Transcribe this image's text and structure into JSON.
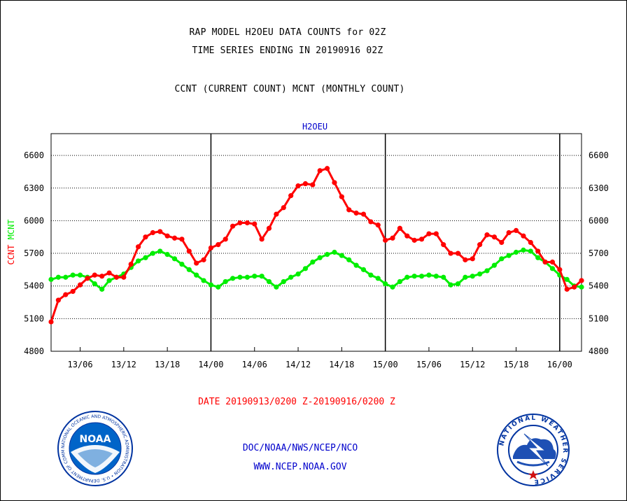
{
  "header": {
    "line1": "RAP MODEL H2OEU DATA COUNTS for 02Z",
    "line2": "TIME SERIES ENDING IN 20190916 02Z",
    "line3": "CCNT (CURRENT COUNT) MCNT (MONTHLY COUNT)"
  },
  "footer": {
    "date_range": "DATE 20190913/0200 Z-20190916/0200 Z",
    "credit_org": "DOC/NOAA/NWS/NCEP/NCO",
    "credit_url": "WWW.NCEP.NOAA.GOV"
  },
  "logos": {
    "noaa_inner_text": "NOAA",
    "noaa_ring_text": "NATIONAL OCEANIC AND ATMOSPHERIC ADMINISTRATION • U.S. DEPARTMENT OF COMMERCE",
    "nws_ring_text": "NATIONAL WEATHER SERVICE"
  },
  "chart_data": {
    "type": "line",
    "title": "H2OEU",
    "ylabel_parts": [
      {
        "text": "CCNT",
        "color": "#ff0000"
      },
      {
        "text": "MCNT",
        "color": "#00ee00"
      }
    ],
    "ylim": [
      4800,
      6800
    ],
    "yticks": [
      4800,
      5100,
      5400,
      5700,
      6000,
      6300,
      6600
    ],
    "ytick_labels": [
      "4800",
      "5100",
      "5400",
      "5700",
      "6000",
      "6300",
      "6600"
    ],
    "grid": true,
    "x_unit": "hours after 20190913/0200 Z",
    "xlim": [
      0,
      73
    ],
    "xticks": [
      4,
      10,
      16,
      22,
      28,
      34,
      40,
      46,
      52,
      58,
      64,
      70
    ],
    "xtick_labels": [
      "13/06",
      "13/12",
      "13/18",
      "14/00",
      "14/06",
      "14/12",
      "14/18",
      "15/00",
      "15/06",
      "15/12",
      "15/18",
      "16/00"
    ],
    "day_dividers": [
      22,
      46,
      70
    ],
    "series": [
      {
        "name": "CCNT",
        "color": "#ff0000",
        "x": [
          0,
          1,
          2,
          3,
          4,
          5,
          6,
          7,
          8,
          9,
          10,
          11,
          12,
          13,
          14,
          15,
          16,
          17,
          18,
          19,
          20,
          21,
          22,
          23,
          24,
          25,
          26,
          27,
          28,
          29,
          30,
          31,
          32,
          33,
          34,
          35,
          36,
          37,
          38,
          39,
          40,
          41,
          42,
          43,
          44,
          45,
          46,
          47,
          48,
          49,
          50,
          51,
          52,
          53,
          54,
          55,
          56,
          57,
          58,
          59,
          60,
          61,
          62,
          63,
          64,
          65,
          66,
          67,
          68,
          69,
          70,
          71,
          72,
          73
        ],
        "values": [
          5070,
          5270,
          5320,
          5350,
          5410,
          5470,
          5500,
          5490,
          5520,
          5480,
          5480,
          5600,
          5760,
          5850,
          5890,
          5900,
          5860,
          5840,
          5830,
          5720,
          5610,
          5640,
          5750,
          5780,
          5830,
          5950,
          5980,
          5980,
          5970,
          5830,
          5930,
          6060,
          6120,
          6230,
          6320,
          6340,
          6330,
          6460,
          6480,
          6350,
          6220,
          6100,
          6070,
          6060,
          5990,
          5960,
          5820,
          5840,
          5930,
          5860,
          5820,
          5830,
          5880,
          5880,
          5780,
          5700,
          5700,
          5640,
          5650,
          5780,
          5870,
          5850,
          5800,
          5890,
          5910,
          5860,
          5800,
          5720,
          5620,
          5620,
          5550,
          5370,
          5390,
          5450
        ]
      },
      {
        "name": "MCNT",
        "color": "#00ee00",
        "x": [
          0,
          1,
          2,
          3,
          4,
          5,
          6,
          7,
          8,
          9,
          10,
          11,
          12,
          13,
          14,
          15,
          16,
          17,
          18,
          19,
          20,
          21,
          22,
          23,
          24,
          25,
          26,
          27,
          28,
          29,
          30,
          31,
          32,
          33,
          34,
          35,
          36,
          37,
          38,
          39,
          40,
          41,
          42,
          43,
          44,
          45,
          46,
          47,
          48,
          49,
          50,
          51,
          52,
          53,
          54,
          55,
          56,
          57,
          58,
          59,
          60,
          61,
          62,
          63,
          64,
          65,
          66,
          67,
          68,
          69,
          70,
          71,
          72,
          73
        ],
        "values": [
          5460,
          5480,
          5480,
          5500,
          5500,
          5480,
          5420,
          5370,
          5450,
          5480,
          5510,
          5570,
          5630,
          5660,
          5700,
          5720,
          5690,
          5650,
          5600,
          5550,
          5500,
          5450,
          5410,
          5390,
          5440,
          5470,
          5480,
          5480,
          5490,
          5490,
          5440,
          5390,
          5440,
          5480,
          5510,
          5560,
          5620,
          5660,
          5690,
          5710,
          5680,
          5640,
          5590,
          5550,
          5500,
          5470,
          5420,
          5390,
          5440,
          5480,
          5490,
          5490,
          5500,
          5490,
          5480,
          5410,
          5420,
          5480,
          5490,
          5510,
          5540,
          5590,
          5650,
          5680,
          5710,
          5730,
          5720,
          5660,
          5620,
          5560,
          5500,
          5460,
          5400,
          5390
        ]
      }
    ]
  }
}
